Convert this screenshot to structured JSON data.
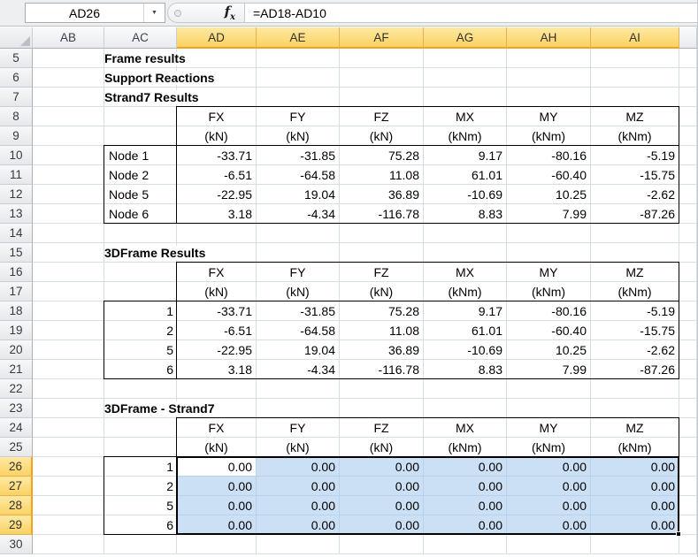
{
  "formula_bar": {
    "name_box": "AD26",
    "formula": "=AD18-AD10",
    "fx_label": "fx"
  },
  "sheet": {
    "column_letters": [
      "AB",
      "AC",
      "AD",
      "AE",
      "AF",
      "AG",
      "AH",
      "AI"
    ],
    "selected_columns": [
      "AD",
      "AE",
      "AF",
      "AG",
      "AH",
      "AI"
    ],
    "first_row": 5,
    "last_row": 30,
    "selected_rows": [
      26,
      27,
      28,
      29
    ],
    "active_cell": "AD26",
    "selection_range": "AD26:AI29"
  },
  "section_titles": [
    {
      "row": 5,
      "col": "AC",
      "text": "Frame results"
    },
    {
      "row": 6,
      "col": "AC",
      "text": "Support Reactions"
    },
    {
      "row": 7,
      "col": "AC",
      "text": "Strand7 Results"
    },
    {
      "row": 15,
      "col": "AC",
      "text": "3DFrame Results"
    },
    {
      "row": 23,
      "col": "AC",
      "text": "3DFrame - Strand7"
    }
  ],
  "tables": [
    {
      "name": "strand7-results",
      "header_row": 8,
      "data_row": 10,
      "columns": [
        "FX",
        "FY",
        "FZ",
        "MX",
        "MY",
        "MZ"
      ],
      "units": [
        "(kN)",
        "(kN)",
        "(kN)",
        "(kNm)",
        "(kNm)",
        "(kNm)"
      ],
      "row_labels": [
        "Node 1",
        "Node 2",
        "Node 5",
        "Node 6"
      ],
      "label_align": "left",
      "rows": [
        [
          "-33.71",
          "-31.85",
          "75.28",
          "9.17",
          "-80.16",
          "-5.19"
        ],
        [
          "-6.51",
          "-64.58",
          "11.08",
          "61.01",
          "-60.40",
          "-15.75"
        ],
        [
          "-22.95",
          "19.04",
          "36.89",
          "-10.69",
          "10.25",
          "-2.62"
        ],
        [
          "3.18",
          "-4.34",
          "-116.78",
          "8.83",
          "7.99",
          "-87.26"
        ]
      ]
    },
    {
      "name": "3dframe-results",
      "header_row": 16,
      "data_row": 18,
      "columns": [
        "FX",
        "FY",
        "FZ",
        "MX",
        "MY",
        "MZ"
      ],
      "units": [
        "(kN)",
        "(kN)",
        "(kN)",
        "(kNm)",
        "(kNm)",
        "(kNm)"
      ],
      "row_labels": [
        "1",
        "2",
        "5",
        "6"
      ],
      "label_align": "right",
      "rows": [
        [
          "-33.71",
          "-31.85",
          "75.28",
          "9.17",
          "-80.16",
          "-5.19"
        ],
        [
          "-6.51",
          "-64.58",
          "11.08",
          "61.01",
          "-60.40",
          "-15.75"
        ],
        [
          "-22.95",
          "19.04",
          "36.89",
          "-10.69",
          "10.25",
          "-2.62"
        ],
        [
          "3.18",
          "-4.34",
          "-116.78",
          "8.83",
          "7.99",
          "-87.26"
        ]
      ]
    },
    {
      "name": "3dframe-minus-strand7",
      "header_row": 24,
      "data_row": 26,
      "columns": [
        "FX",
        "FY",
        "FZ",
        "MX",
        "MY",
        "MZ"
      ],
      "units": [
        "(kN)",
        "(kN)",
        "(kN)",
        "(kNm)",
        "(kNm)",
        "(kNm)"
      ],
      "row_labels": [
        "1",
        "2",
        "5",
        "6"
      ],
      "label_align": "right",
      "rows": [
        [
          "0.00",
          "0.00",
          "0.00",
          "0.00",
          "0.00",
          "0.00"
        ],
        [
          "0.00",
          "0.00",
          "0.00",
          "0.00",
          "0.00",
          "0.00"
        ],
        [
          "0.00",
          "0.00",
          "0.00",
          "0.00",
          "0.00",
          "0.00"
        ],
        [
          "0.00",
          "0.00",
          "0.00",
          "0.00",
          "0.00",
          "0.00"
        ]
      ]
    }
  ],
  "colors": {
    "selected_header_fill": "#FBD263",
    "selected_header_line": "#F0A31E",
    "selection_fill": "#CBDFF5",
    "gridline": "#D7DDE5",
    "table_border": "#000000"
  }
}
